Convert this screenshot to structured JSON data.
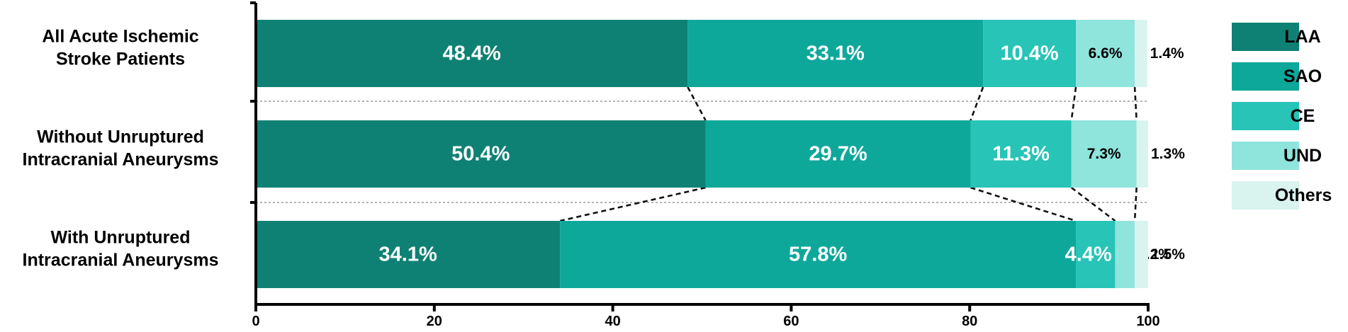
{
  "chart_data": {
    "type": "bar",
    "orientation": "horizontal",
    "stacked": true,
    "categories": [
      [
        "All Acute Ischemic",
        "Stroke Patients"
      ],
      [
        "Without Unruptured",
        "Intracranial Aneurysms"
      ],
      [
        "With Unruptured",
        "Intracranial Aneurysms"
      ]
    ],
    "series": [
      {
        "name": "LAA",
        "color": "#0f8174",
        "values": [
          48.4,
          50.4,
          34.1
        ],
        "labels": [
          "48.4%",
          "50.4%",
          "34.1%"
        ]
      },
      {
        "name": "SAO",
        "color": "#0ea89b",
        "values": [
          33.1,
          29.7,
          57.8
        ],
        "labels": [
          "33.1%",
          "29.7%",
          "57.8%"
        ]
      },
      {
        "name": "CE",
        "color": "#27c4b7",
        "values": [
          10.4,
          11.3,
          4.4
        ],
        "labels": [
          "10.4%",
          "11.3%",
          "4.4%"
        ]
      },
      {
        "name": "UND",
        "color": "#8fe4dc",
        "values": [
          6.6,
          7.3,
          2.2
        ],
        "labels": [
          "6.6%",
          "7.3%",
          "2.2%"
        ]
      },
      {
        "name": "Others",
        "color": "#d9f3ee",
        "values": [
          1.4,
          1.3,
          1.5
        ],
        "labels": [
          "1.4%",
          "1.3%",
          "1.5%"
        ]
      }
    ],
    "xlim": [
      0,
      100
    ],
    "xticks": [
      0,
      20,
      40,
      60,
      80,
      100
    ],
    "title": "",
    "xlabel": "",
    "ylabel": "",
    "legend_position": "right",
    "grid": false
  }
}
